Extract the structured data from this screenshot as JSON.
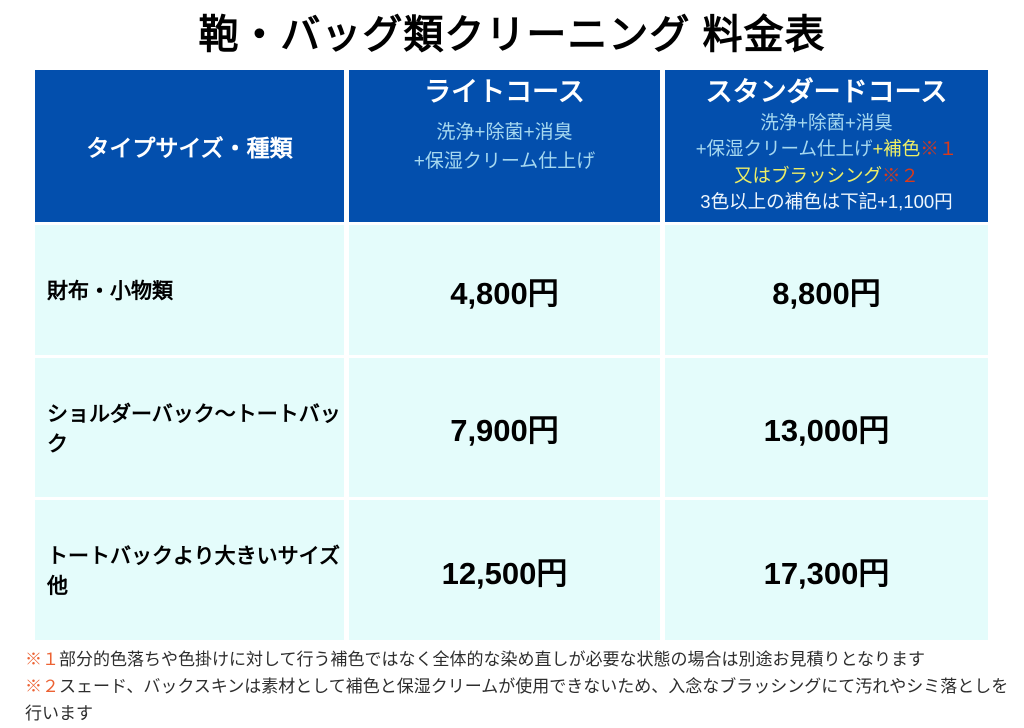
{
  "page": {
    "title": "鞄・バッグ類クリーニング 料金表"
  },
  "colors": {
    "header_bg": "#034fad",
    "cell_bg": "#e4fcfb",
    "subtext_blue": "#a5d8f0",
    "highlight_yellow": "#edee66",
    "marker_red": "#d93a1a",
    "footnote_marker_orange": "#ec6233"
  },
  "table": {
    "header": {
      "col_type": "タイプサイズ・種類",
      "light_course": {
        "title": "ライトコース",
        "desc_line1": "洗浄+除菌+消臭",
        "desc_line2": "+保湿クリーム仕上げ"
      },
      "standard_course": {
        "title": "スタンダードコース",
        "desc_line1": "洗浄+除菌+消臭",
        "desc_line2_blue": "+保湿クリーム仕上げ",
        "desc_line2_yellow": "+補色",
        "desc_line2_red": "※１",
        "desc_line3_yellow": "又はブラッシング",
        "desc_line3_red": "※２",
        "desc_line4": "3色以上の補色は下記+1,100円"
      }
    },
    "rows": [
      {
        "label": "財布・小物類",
        "light_price": "4,800円",
        "standard_price": "8,800円"
      },
      {
        "label": "ショルダーバック〜トートバック",
        "light_price": "7,900円",
        "standard_price": "13,000円"
      },
      {
        "label": "トートバックより大きいサイズ他",
        "light_price": "12,500円",
        "standard_price": "17,300円"
      }
    ]
  },
  "footnotes": [
    {
      "marker": "※１",
      "text": "部分的色落ちや色掛けに対して行う補色ではなく全体的な染め直しが必要な状態の場合は別途お見積りとなります"
    },
    {
      "marker": "※２",
      "text": "スェード、バックスキンは素材として補色と保湿クリームが使用できないため、入念なブラッシングにて汚れやシミ落としを行います"
    }
  ]
}
